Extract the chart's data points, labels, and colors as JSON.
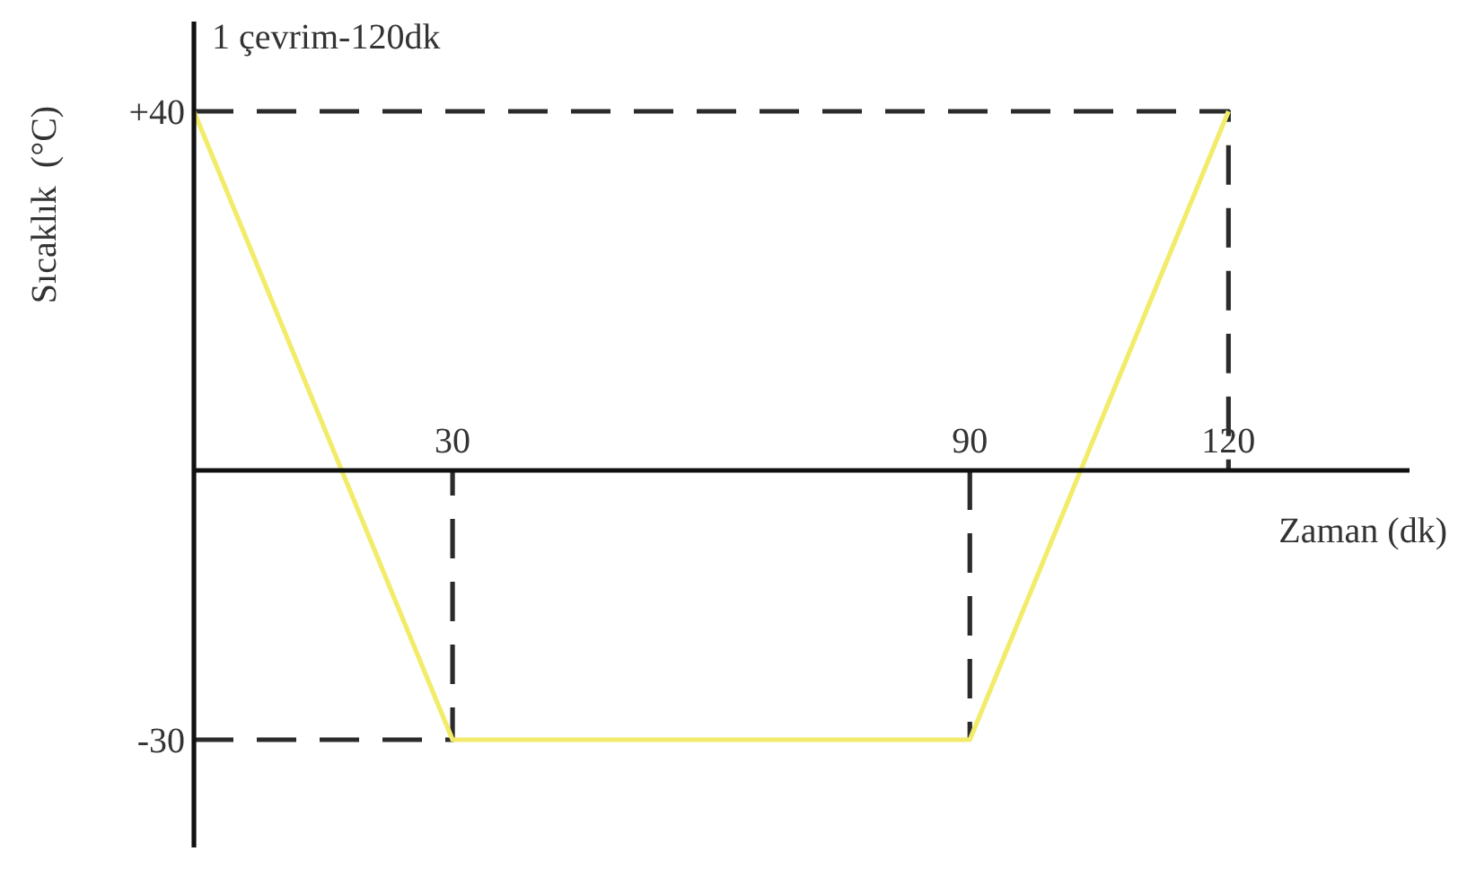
{
  "chart_data": {
    "type": "line",
    "title": "1 çevrim-120dk",
    "xlabel": "Zaman (dk)",
    "ylabel": "Sıcaklık  (°C)",
    "xlim": [
      0,
      141
    ],
    "ylim": [
      -42,
      50
    ],
    "xticks": [
      30,
      90,
      120
    ],
    "yticks": [
      {
        "value": 40,
        "label": "+40"
      },
      -30
    ],
    "series": [
      {
        "color": "#f2ec6a",
        "x": [
          0,
          30,
          90,
          120
        ],
        "values": [
          40,
          -30,
          -30,
          40
        ],
        "line_style": "solid"
      },
      {
        "color": "#2b2b2b",
        "x": [
          0,
          120,
          120
        ],
        "values": [
          40,
          40,
          0
        ],
        "line_style": "dashed"
      },
      {
        "color": "#2b2b2b",
        "x": [
          0,
          30,
          30
        ],
        "values": [
          -30,
          -30,
          0
        ],
        "line_style": "dashed"
      },
      {
        "color": "#2b2b2b",
        "x": [
          90,
          90
        ],
        "values": [
          0,
          -30
        ],
        "line_style": "dashed"
      }
    ]
  }
}
